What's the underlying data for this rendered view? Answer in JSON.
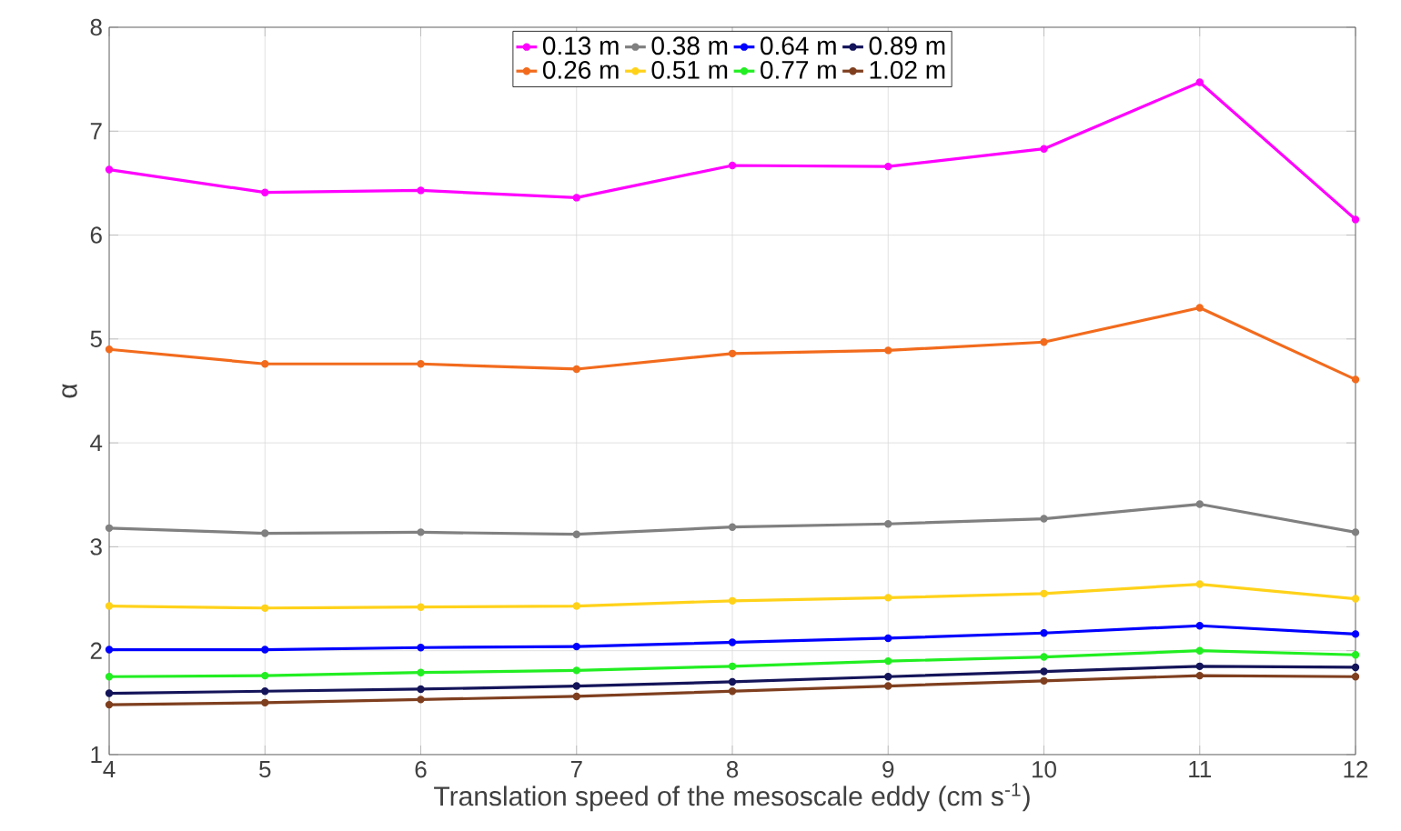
{
  "chart_data": {
    "type": "line",
    "xlabel": "Translation speed of the mesoscale eddy (cm s$^{-1}$)",
    "ylabel": "α",
    "x": [
      4,
      5,
      6,
      7,
      8,
      9,
      10,
      11,
      12
    ],
    "xlim": [
      4,
      12
    ],
    "xticks": [
      4,
      5,
      6,
      7,
      8,
      9,
      10,
      11,
      12
    ],
    "ylim": [
      1,
      8
    ],
    "yticks": [
      1,
      2,
      3,
      4,
      5,
      6,
      7,
      8
    ],
    "grid": true,
    "legend": "top",
    "marker": "circle",
    "line_style": "solid",
    "series": [
      {
        "name": "0.13 m",
        "color": "#ff00ff",
        "values": [
          6.63,
          6.41,
          6.43,
          6.36,
          6.67,
          6.66,
          6.83,
          7.47,
          6.15
        ]
      },
      {
        "name": "0.38 m",
        "color": "#808080",
        "values": [
          3.18,
          3.13,
          3.14,
          3.12,
          3.19,
          3.22,
          3.27,
          3.41,
          3.14
        ]
      },
      {
        "name": "0.64 m",
        "color": "#0000ff",
        "values": [
          2.01,
          2.01,
          2.03,
          2.04,
          2.08,
          2.12,
          2.17,
          2.24,
          2.16
        ]
      },
      {
        "name": "0.89 m",
        "color": "#14145a",
        "values": [
          1.59,
          1.61,
          1.63,
          1.66,
          1.7,
          1.75,
          1.8,
          1.85,
          1.84
        ]
      },
      {
        "name": "0.26 m",
        "color": "#f26b1d",
        "values": [
          4.9,
          4.76,
          4.76,
          4.71,
          4.86,
          4.89,
          4.97,
          5.3,
          4.61
        ]
      },
      {
        "name": "0.51 m",
        "color": "#ffd21a",
        "values": [
          2.43,
          2.41,
          2.42,
          2.43,
          2.48,
          2.51,
          2.55,
          2.64,
          2.5
        ]
      },
      {
        "name": "0.77 m",
        "color": "#22ee22",
        "values": [
          1.75,
          1.76,
          1.79,
          1.81,
          1.85,
          1.9,
          1.94,
          2.0,
          1.96
        ]
      },
      {
        "name": "1.02 m",
        "color": "#7f3f1f",
        "values": [
          1.48,
          1.5,
          1.53,
          1.56,
          1.61,
          1.66,
          1.71,
          1.76,
          1.75
        ]
      }
    ]
  }
}
